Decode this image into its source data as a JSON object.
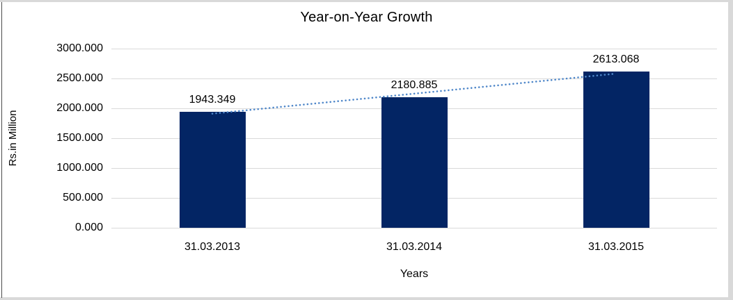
{
  "chart_data": {
    "type": "bar",
    "title": "Year-on-Year Growth",
    "xlabel": "Years",
    "ylabel": "Rs.in Million",
    "categories": [
      "31.03.2013",
      "31.03.2014",
      "31.03.2015"
    ],
    "series": [
      {
        "name": "Year-on-Year Growth",
        "values": [
          1943.349,
          2180.885,
          2613.068
        ],
        "value_labels": [
          "1943.349",
          "2180.885",
          "2613.068"
        ]
      }
    ],
    "ylim": [
      0,
      3000
    ],
    "yticks": [
      0,
      500,
      1000,
      1500,
      2000,
      2500,
      3000
    ],
    "ytick_labels": [
      "0.000",
      "500.000",
      "1000.000",
      "1500.000",
      "2000.000",
      "2500.000",
      "3000.000"
    ],
    "grid": true,
    "legend": "none",
    "trendline": {
      "type": "linear",
      "style": "dotted"
    },
    "colors": {
      "bar": "#032564",
      "trendline": "#4f87c9",
      "gridline": "#d9d9d9",
      "text": "#000000",
      "frame_edge": "#d9d9d9",
      "frame_left_line": "#4a4a4a"
    }
  }
}
